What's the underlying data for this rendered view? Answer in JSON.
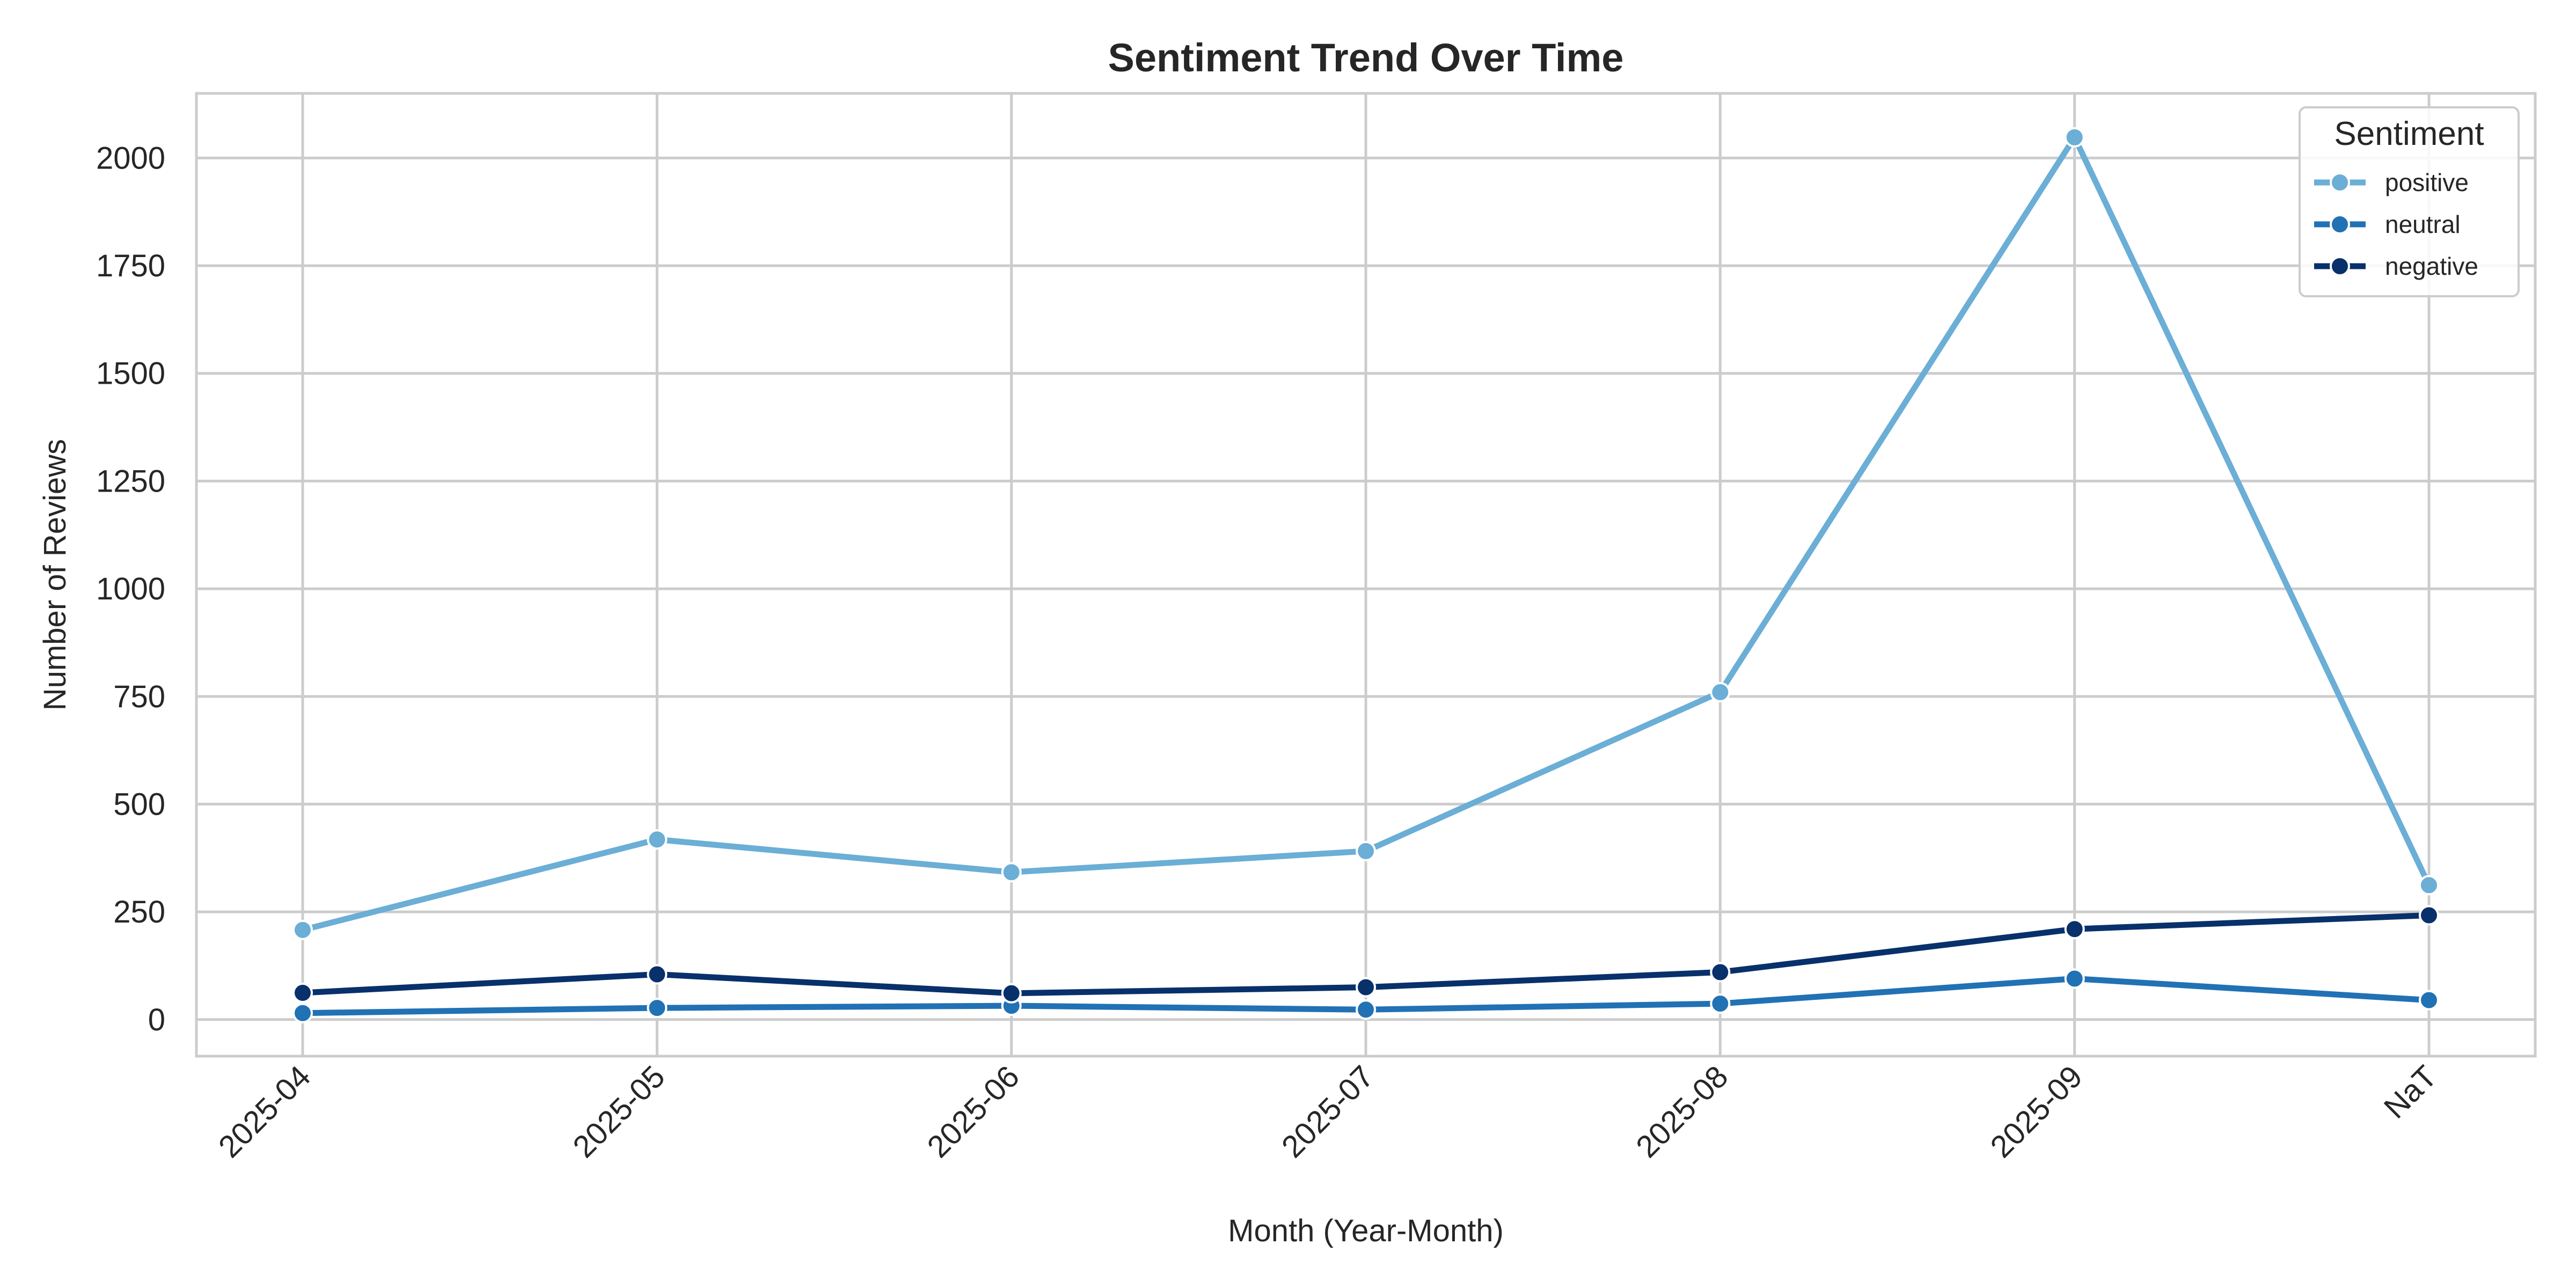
{
  "chart_data": {
    "type": "line",
    "title": "Sentiment Trend Over Time",
    "xlabel": "Month (Year-Month)",
    "ylabel": "Number of Reviews",
    "categories": [
      "2025-04",
      "2025-05",
      "2025-06",
      "2025-07",
      "2025-08",
      "2025-09",
      "NaT"
    ],
    "y_ticks": [
      0,
      250,
      500,
      750,
      1000,
      1250,
      1500,
      1750,
      2000
    ],
    "ylim": [
      -85,
      2150
    ],
    "grid": true,
    "legend": {
      "title": "Sentiment",
      "placement": "top-right"
    },
    "series": [
      {
        "name": "positive",
        "color": "#6baed6",
        "values": [
          208,
          418,
          342,
          391,
          760,
          2048,
          312
        ]
      },
      {
        "name": "neutral",
        "color": "#2171b5",
        "values": [
          15,
          27,
          32,
          23,
          37,
          95,
          45
        ]
      },
      {
        "name": "negative",
        "color": "#08306b",
        "values": [
          62,
          105,
          61,
          75,
          110,
          210,
          242
        ]
      }
    ]
  }
}
